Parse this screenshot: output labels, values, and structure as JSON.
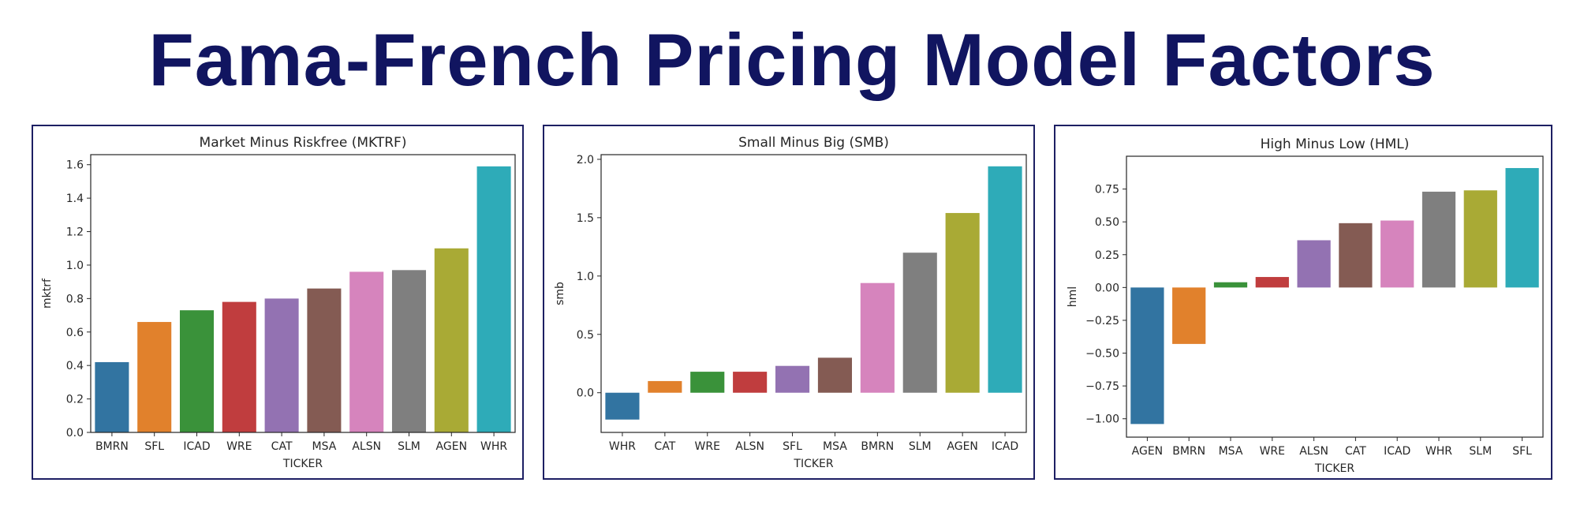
{
  "page": {
    "title": "Fama-French Pricing Model Factors"
  },
  "chart_data": [
    {
      "type": "bar",
      "title": "Market Minus Riskfree (MKTRF)",
      "xlabel": "TICKER",
      "ylabel": "mktrf",
      "categories": [
        "BMRN",
        "SFL",
        "ICAD",
        "WRE",
        "CAT",
        "MSA",
        "ALSN",
        "SLM",
        "AGEN",
        "WHR"
      ],
      "values": [
        0.42,
        0.66,
        0.73,
        0.78,
        0.8,
        0.86,
        0.96,
        0.97,
        1.1,
        1.59
      ],
      "ylim": [
        0.0,
        1.66
      ],
      "yticks": [
        0.0,
        0.2,
        0.4,
        0.6,
        0.8,
        1.0,
        1.2,
        1.4,
        1.6
      ],
      "ytick_labels": [
        "0.0",
        "0.2",
        "0.4",
        "0.6",
        "0.8",
        "1.0",
        "1.2",
        "1.4",
        "1.6"
      ],
      "grid": false
    },
    {
      "type": "bar",
      "title": "Small Minus Big (SMB)",
      "xlabel": "TICKER",
      "ylabel": "smb",
      "categories": [
        "WHR",
        "CAT",
        "WRE",
        "ALSN",
        "SFL",
        "MSA",
        "BMRN",
        "SLM",
        "AGEN",
        "ICAD"
      ],
      "values": [
        -0.23,
        0.1,
        0.18,
        0.18,
        0.23,
        0.3,
        0.94,
        1.2,
        1.54,
        1.94
      ],
      "ylim": [
        -0.34,
        2.04
      ],
      "yticks": [
        0.0,
        0.5,
        1.0,
        1.5,
        2.0
      ],
      "ytick_labels": [
        "0.0",
        "0.5",
        "1.0",
        "1.5",
        "2.0"
      ],
      "grid": false
    },
    {
      "type": "bar",
      "title": "High Minus Low (HML)",
      "xlabel": "TICKER",
      "ylabel": "hml",
      "categories": [
        "AGEN",
        "BMRN",
        "MSA",
        "WRE",
        "ALSN",
        "CAT",
        "ICAD",
        "WHR",
        "SLM",
        "SFL"
      ],
      "values": [
        -1.04,
        -0.43,
        0.04,
        0.08,
        0.36,
        0.49,
        0.51,
        0.73,
        0.74,
        0.91
      ],
      "ylim": [
        -1.14,
        1.0
      ],
      "yticks": [
        -1.0,
        -0.75,
        -0.5,
        -0.25,
        0.0,
        0.25,
        0.5,
        0.75
      ],
      "ytick_labels": [
        "−1.00",
        "−0.75",
        "−0.50",
        "−0.25",
        "0.00",
        "0.25",
        "0.50",
        "0.75"
      ],
      "grid": false
    }
  ],
  "colors": {
    "title": "#111560",
    "panel_border": "#1d1f63",
    "palette": [
      "#3274a1",
      "#e1812c",
      "#3a923a",
      "#c03d3e",
      "#9372b2",
      "#845b53",
      "#d684bd",
      "#7f7f7f",
      "#a9aa35",
      "#2eabb8"
    ]
  }
}
